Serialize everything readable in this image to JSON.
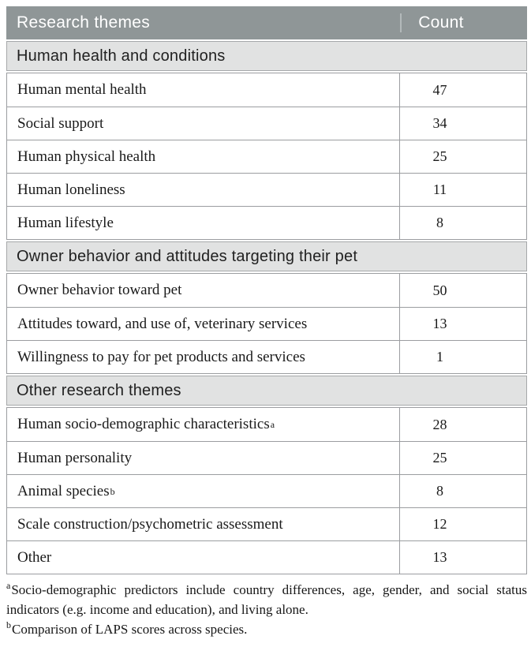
{
  "table": {
    "header": {
      "col1": "Research themes",
      "col2": "Count"
    },
    "sections": [
      {
        "title": "Human health and conditions",
        "rows": [
          {
            "theme": "Human mental health",
            "count": "47"
          },
          {
            "theme": "Social support",
            "count": "34"
          },
          {
            "theme": "Human physical health",
            "count": "25"
          },
          {
            "theme": "Human loneliness",
            "count": "11"
          },
          {
            "theme": "Human lifestyle",
            "count": "8"
          }
        ]
      },
      {
        "title": "Owner behavior and attitudes targeting their pet",
        "rows": [
          {
            "theme": "Owner behavior toward pet",
            "count": "50"
          },
          {
            "theme": "Attitudes toward, and use of, veterinary services",
            "count": "13"
          },
          {
            "theme": "Willingness to pay for pet products and services",
            "count": "1"
          }
        ]
      },
      {
        "title": "Other research themes",
        "rows": [
          {
            "theme": "Human socio-demographic characteristics",
            "sup": "a",
            "count": "28"
          },
          {
            "theme": "Human personality",
            "count": "25"
          },
          {
            "theme": "Animal species",
            "sup": "b",
            "count": "8"
          },
          {
            "theme": "Scale construction/psychometric assessment",
            "count": "12"
          },
          {
            "theme": "Other",
            "count": "13"
          }
        ]
      }
    ]
  },
  "footnotes": [
    {
      "marker": "a",
      "text": "Socio-demographic predictors include country differences, age, gender, and social status indicators (e.g. income and education), and living alone."
    },
    {
      "marker": "b",
      "text": "Comparison of LAPS scores across species."
    }
  ],
  "colors": {
    "header_bg": "#8f9697",
    "header_text": "#ffffff",
    "section_bg": "#e1e2e2",
    "border": "#9b9da0",
    "body_text": "#1a1a1a"
  }
}
